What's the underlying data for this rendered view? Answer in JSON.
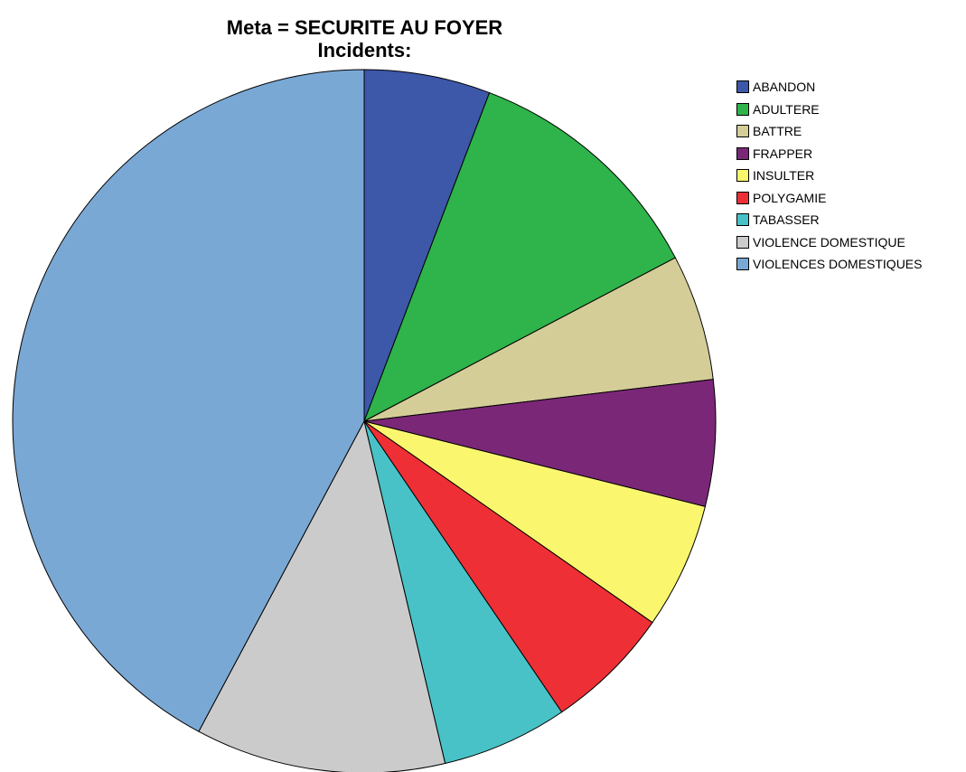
{
  "chart_data": {
    "type": "pie",
    "title_lines": [
      "Meta = SECURITE AU FOYER",
      "Incidents:"
    ],
    "legend_position": "right",
    "slices": [
      {
        "label": "ABANDON",
        "value": 5.8,
        "color": "#3d57a9"
      },
      {
        "label": "ADULTERE",
        "value": 11.5,
        "color": "#2eb44a"
      },
      {
        "label": "BATTRE",
        "value": 5.8,
        "color": "#d4cd98"
      },
      {
        "label": "FRAPPER",
        "value": 5.8,
        "color": "#7b2778"
      },
      {
        "label": "INSULTER",
        "value": 5.8,
        "color": "#faf76f"
      },
      {
        "label": "POLYGAMIE",
        "value": 5.8,
        "color": "#ee3036"
      },
      {
        "label": "TABASSER",
        "value": 5.8,
        "color": "#48c2c7"
      },
      {
        "label": "VIOLENCE DOMESTIQUE",
        "value": 11.5,
        "color": "#cbcbcb"
      },
      {
        "label": "VIOLENCES DOMESTIQUES",
        "value": 42.2,
        "color": "#7aa8d5"
      }
    ]
  }
}
